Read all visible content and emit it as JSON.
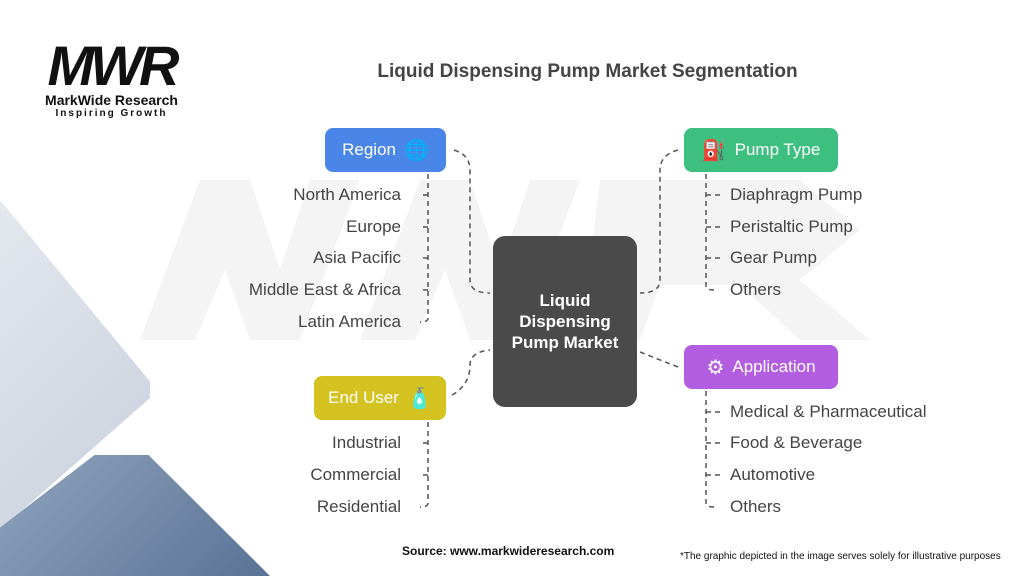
{
  "logo": {
    "mark": "MWR",
    "name": "MarkWide Research",
    "tagline": "Inspiring Growth"
  },
  "title": "Liquid Dispensing Pump Market Segmentation",
  "center": "Liquid Dispensing Pump Market",
  "colors": {
    "region": "#4a86e8",
    "pump_type": "#3dbf80",
    "application": "#b35ee0",
    "end_user": "#d3c220",
    "center": "#4a4a4a"
  },
  "region": {
    "label": "Region",
    "icon": "globe-icon",
    "items": [
      "North America",
      "Europe",
      "Asia Pacific",
      "Middle East & Africa",
      "Latin America"
    ]
  },
  "pump_type": {
    "label": "Pump Type",
    "icon": "pump-icon",
    "items": [
      "Diaphragm Pump",
      "Peristaltic Pump",
      "Gear Pump",
      "Others"
    ]
  },
  "application": {
    "label": "Application",
    "icon": "valve-icon",
    "items": [
      "Medical & Pharmaceutical",
      "Food & Beverage",
      "Automotive",
      "Others"
    ]
  },
  "end_user": {
    "label": "End User",
    "icon": "containers-icon",
    "items": [
      "Industrial",
      "Commercial",
      "Residential"
    ]
  },
  "source": "Source: www.markwideresearch.com",
  "note": "*The graphic depicted in the image serves solely for illustrative purposes"
}
